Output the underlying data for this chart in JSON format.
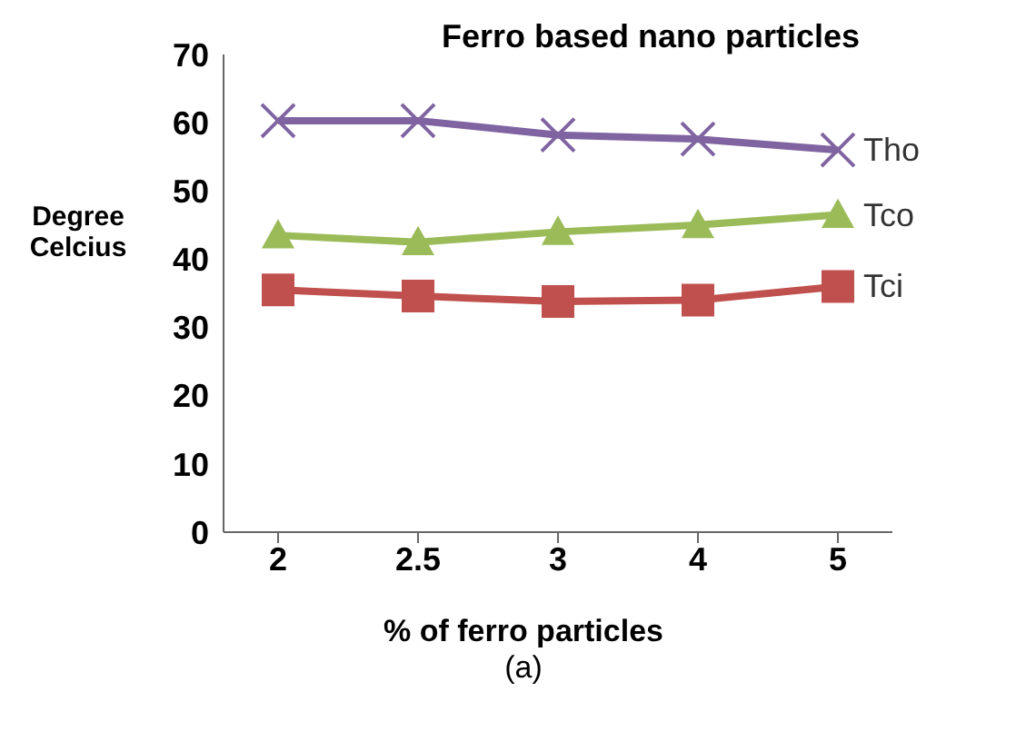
{
  "chart_data": {
    "type": "line",
    "title": "Ferro based nano particles",
    "xlabel": "% of ferro particles",
    "ylabel": "Degree Celcius",
    "annotations": [
      "(a)"
    ],
    "categories": [
      "2",
      "2.5",
      "3",
      "4",
      "5"
    ],
    "series": [
      {
        "name": "Tho",
        "color": "#8064a2",
        "marker": "cross",
        "values": [
          60.3,
          60.3,
          58.2,
          57.6,
          56
        ]
      },
      {
        "name": "Tco",
        "color": "#9bbb59",
        "marker": "triangle",
        "values": [
          43.5,
          42.5,
          44,
          45,
          46.5
        ]
      },
      {
        "name": "Tci",
        "color": "#c0504d",
        "marker": "square",
        "values": [
          35.5,
          34.6,
          33.8,
          34,
          36
        ]
      }
    ],
    "ylim": [
      0,
      70
    ],
    "yticks": [
      0,
      10,
      20,
      30,
      40,
      50,
      60,
      70
    ],
    "grid": false,
    "legend": false
  }
}
